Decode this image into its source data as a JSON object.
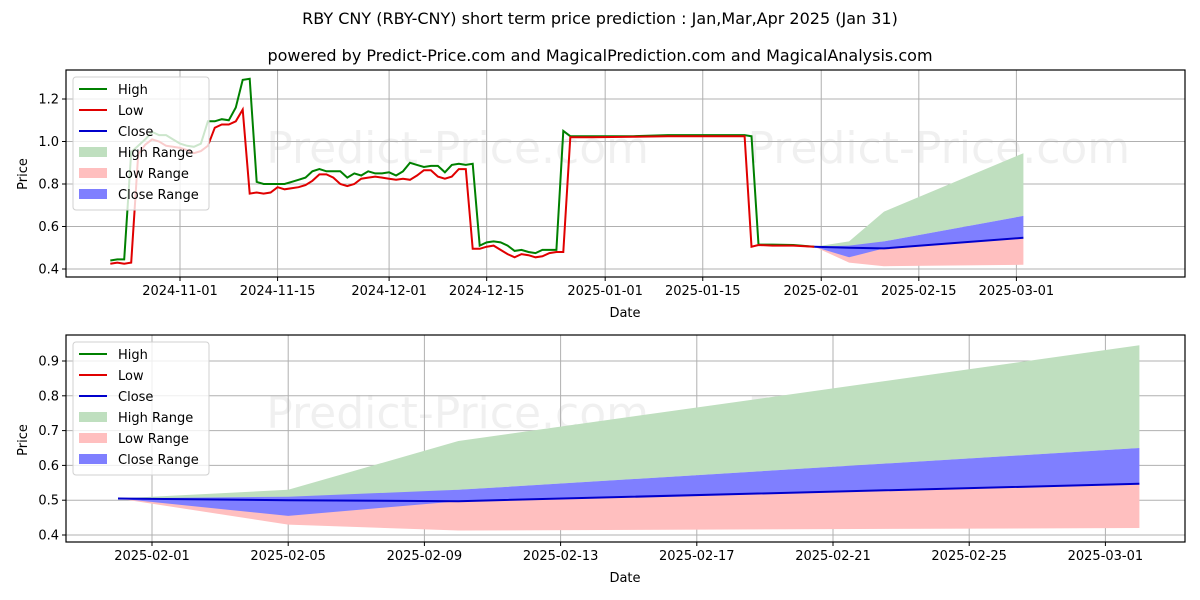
{
  "header": {
    "title": "RBY CNY (RBY-CNY) short term price prediction : Jan,Mar,Apr 2025 (Jan 31)",
    "subtitle": "powered by Predict-Price.com and MagicalPrediction.com and MagicalAnalysis.com"
  },
  "watermark": "Predict-Price.com",
  "colors": {
    "high": "#008000",
    "low": "#e00000",
    "close": "#0000cc",
    "high_range": "#bfdfbf",
    "low_range": "#ffbfbf",
    "close_range": "#7f7fff"
  },
  "legend": [
    "High",
    "Low",
    "Close",
    "High Range",
    "Low Range",
    "Close Range"
  ],
  "chart_data": [
    {
      "type": "line",
      "title": "Historical and forecast price (full range)",
      "xlabel": "Date",
      "ylabel": "Price",
      "ylim": [
        0.38,
        1.34
      ],
      "yticks": [
        "0.4",
        "0.6",
        "0.8",
        "1.0",
        "1.2"
      ],
      "xticks": [
        "2024-11-01",
        "2024-11-15",
        "2024-12-01",
        "2024-12-15",
        "2025-01-01",
        "2025-01-15",
        "2025-02-01",
        "2025-02-15",
        "2025-03-01"
      ],
      "grid": true,
      "legend_position": "upper left",
      "series": [
        {
          "name": "High",
          "x": [
            "2024-10-22",
            "2024-10-23",
            "2024-10-24",
            "2024-10-25",
            "2024-10-26",
            "2024-10-27",
            "2024-10-28",
            "2024-10-29",
            "2024-10-30",
            "2024-10-31",
            "2024-11-01",
            "2024-11-02",
            "2024-11-03",
            "2024-11-04",
            "2024-11-05",
            "2024-11-06",
            "2024-11-07",
            "2024-11-08",
            "2024-11-09",
            "2024-11-10",
            "2024-11-11",
            "2024-11-12",
            "2024-11-13",
            "2024-11-14",
            "2024-11-15",
            "2024-11-16",
            "2024-11-17",
            "2024-11-18",
            "2024-11-19",
            "2024-11-20",
            "2024-11-21",
            "2024-11-22",
            "2024-11-23",
            "2024-11-24",
            "2024-11-25",
            "2024-11-26",
            "2024-11-27",
            "2024-11-28",
            "2024-11-29",
            "2024-11-30",
            "2024-12-01",
            "2024-12-02",
            "2024-12-03",
            "2024-12-04",
            "2024-12-05",
            "2024-12-06",
            "2024-12-07",
            "2024-12-08",
            "2024-12-09",
            "2024-12-10",
            "2024-12-11",
            "2024-12-12",
            "2024-12-13",
            "2024-12-14",
            "2024-12-15",
            "2024-12-16",
            "2024-12-17",
            "2024-12-18",
            "2024-12-19",
            "2024-12-20",
            "2024-12-21",
            "2024-12-22",
            "2024-12-23",
            "2024-12-24",
            "2024-12-25",
            "2024-12-26",
            "2024-12-27",
            "2024-12-28",
            "2024-12-29",
            "2024-12-30",
            "2025-01-05",
            "2025-01-10",
            "2025-01-15",
            "2025-01-20",
            "2025-01-21",
            "2025-01-22",
            "2025-01-23",
            "2025-01-25",
            "2025-01-28",
            "2025-01-31"
          ],
          "values": [
            0.44,
            0.445,
            0.445,
            0.95,
            0.98,
            1.01,
            1.045,
            1.03,
            1.03,
            1.01,
            0.99,
            0.98,
            0.975,
            0.99,
            1.095,
            1.095,
            1.105,
            1.1,
            1.16,
            1.29,
            1.295,
            0.81,
            0.8,
            0.8,
            0.8,
            0.8,
            0.81,
            0.82,
            0.83,
            0.86,
            0.87,
            0.86,
            0.86,
            0.86,
            0.83,
            0.85,
            0.84,
            0.86,
            0.85,
            0.85,
            0.855,
            0.84,
            0.86,
            0.9,
            0.89,
            0.88,
            0.885,
            0.885,
            0.855,
            0.89,
            0.895,
            0.89,
            0.895,
            0.51,
            0.525,
            0.53,
            0.525,
            0.51,
            0.485,
            0.49,
            0.48,
            0.475,
            0.49,
            0.49,
            0.49,
            1.05,
            1.025,
            1.025,
            1.025,
            1.025,
            1.025,
            1.03,
            1.03,
            1.03,
            1.03,
            1.025,
            0.515,
            0.515,
            0.513,
            0.505
          ]
        },
        {
          "name": "Low",
          "x": [
            "2024-10-22",
            "2024-10-23",
            "2024-10-24",
            "2024-10-25",
            "2024-10-26",
            "2024-10-27",
            "2024-10-28",
            "2024-10-29",
            "2024-10-30",
            "2024-10-31",
            "2024-11-01",
            "2024-11-02",
            "2024-11-03",
            "2024-11-04",
            "2024-11-05",
            "2024-11-06",
            "2024-11-07",
            "2024-11-08",
            "2024-11-09",
            "2024-11-10",
            "2024-11-11",
            "2024-11-12",
            "2024-11-13",
            "2024-11-14",
            "2024-11-15",
            "2024-11-16",
            "2024-11-17",
            "2024-11-18",
            "2024-11-19",
            "2024-11-20",
            "2024-11-21",
            "2024-11-22",
            "2024-11-23",
            "2024-11-24",
            "2024-11-25",
            "2024-11-26",
            "2024-11-27",
            "2024-11-28",
            "2024-11-29",
            "2024-11-30",
            "2024-12-01",
            "2024-12-02",
            "2024-12-03",
            "2024-12-04",
            "2024-12-05",
            "2024-12-06",
            "2024-12-07",
            "2024-12-08",
            "2024-12-09",
            "2024-12-10",
            "2024-12-11",
            "2024-12-12",
            "2024-12-13",
            "2024-12-14",
            "2024-12-15",
            "2024-12-16",
            "2024-12-17",
            "2024-12-18",
            "2024-12-19",
            "2024-12-20",
            "2024-12-21",
            "2024-12-22",
            "2024-12-23",
            "2024-12-24",
            "2024-12-25",
            "2024-12-26",
            "2024-12-27",
            "2024-12-28",
            "2024-12-29",
            "2024-12-30",
            "2025-01-05",
            "2025-01-10",
            "2025-01-15",
            "2025-01-20",
            "2025-01-21",
            "2025-01-22",
            "2025-01-23",
            "2025-01-25",
            "2025-01-28",
            "2025-01-31"
          ],
          "values": [
            0.425,
            0.43,
            0.425,
            0.43,
            0.94,
            0.985,
            1.01,
            1.0,
            0.98,
            0.975,
            0.97,
            0.96,
            0.945,
            0.955,
            0.98,
            1.065,
            1.08,
            1.08,
            1.095,
            1.15,
            0.755,
            0.76,
            0.755,
            0.76,
            0.785,
            0.775,
            0.78,
            0.785,
            0.795,
            0.815,
            0.845,
            0.845,
            0.83,
            0.8,
            0.79,
            0.8,
            0.825,
            0.83,
            0.835,
            0.83,
            0.825,
            0.82,
            0.825,
            0.82,
            0.84,
            0.865,
            0.865,
            0.835,
            0.825,
            0.835,
            0.87,
            0.87,
            0.495,
            0.495,
            0.505,
            0.51,
            0.49,
            0.47,
            0.455,
            0.47,
            0.465,
            0.455,
            0.46,
            0.475,
            0.48,
            0.48,
            1.02,
            1.02,
            1.02,
            1.02,
            1.022,
            1.025,
            1.025,
            1.025,
            1.025,
            0.505,
            0.513,
            0.51,
            0.51,
            0.505
          ]
        },
        {
          "name": "Close",
          "x": [
            "2025-01-31",
            "2025-02-05",
            "2025-02-10",
            "2025-03-02"
          ],
          "values": [
            0.505,
            0.5,
            0.497,
            0.547
          ]
        }
      ],
      "ranges": {
        "x": [
          "2025-01-31",
          "2025-02-05",
          "2025-02-10",
          "2025-03-02"
        ],
        "high_range": {
          "lower": [
            0.505,
            0.5,
            0.53,
            0.65
          ],
          "upper": [
            0.505,
            0.53,
            0.67,
            0.945
          ]
        },
        "low_range": {
          "lower": [
            0.505,
            0.43,
            0.413,
            0.42
          ],
          "upper": [
            0.505,
            0.5,
            0.497,
            0.547
          ]
        },
        "close_range": {
          "lower": [
            0.505,
            0.455,
            0.497,
            0.547
          ],
          "upper": [
            0.505,
            0.51,
            0.53,
            0.65
          ]
        }
      }
    },
    {
      "type": "area",
      "title": "Forecast detail",
      "xlabel": "Date",
      "ylabel": "Price",
      "ylim": [
        0.38,
        0.97
      ],
      "yticks": [
        "0.4",
        "0.5",
        "0.6",
        "0.7",
        "0.8",
        "0.9"
      ],
      "xticks": [
        "2025-02-01",
        "2025-02-05",
        "2025-02-09",
        "2025-02-13",
        "2025-02-17",
        "2025-02-21",
        "2025-02-25",
        "2025-03-01"
      ],
      "grid": true,
      "legend_position": "upper left",
      "x": [
        "2025-01-31",
        "2025-02-05",
        "2025-02-10",
        "2025-03-02"
      ],
      "series": [
        {
          "name": "Close",
          "values": [
            0.505,
            0.5,
            0.497,
            0.547
          ]
        },
        {
          "name": "High Range",
          "lower": [
            0.505,
            0.5,
            0.53,
            0.65
          ],
          "upper": [
            0.505,
            0.53,
            0.67,
            0.945
          ]
        },
        {
          "name": "Low Range",
          "lower": [
            0.505,
            0.43,
            0.413,
            0.42
          ],
          "upper": [
            0.505,
            0.5,
            0.497,
            0.547
          ]
        },
        {
          "name": "Close Range",
          "lower": [
            0.505,
            0.455,
            0.497,
            0.547
          ],
          "upper": [
            0.505,
            0.51,
            0.53,
            0.65
          ]
        }
      ]
    }
  ]
}
